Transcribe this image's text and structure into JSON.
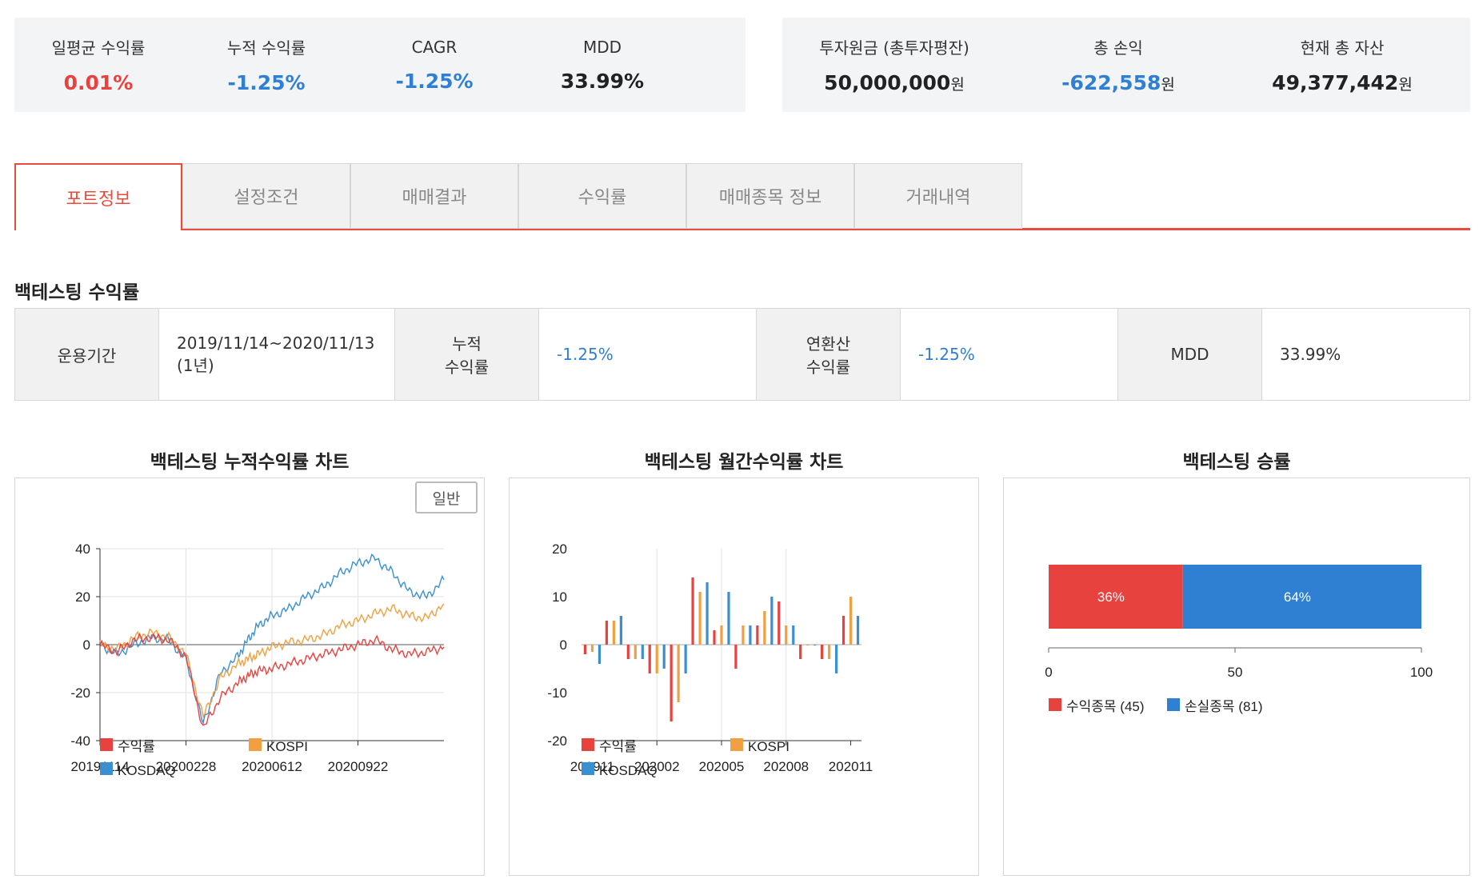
{
  "summary_left": [
    {
      "label": "일평균 수익률",
      "value": "0.01%",
      "tone": "red"
    },
    {
      "label": "누적 수익률",
      "value": "-1.25%",
      "tone": "blue"
    },
    {
      "label": "CAGR",
      "value": "-1.25%",
      "tone": "blue"
    },
    {
      "label": "MDD",
      "value": "33.99%",
      "tone": "black"
    }
  ],
  "summary_right": [
    {
      "label": "투자원금 (총투자평잔)",
      "value": "50,000,000",
      "unit": "원",
      "tone": "black"
    },
    {
      "label": "총 손익",
      "value": "-622,558",
      "unit": "원",
      "tone": "blue"
    },
    {
      "label": "현재 총 자산",
      "value": "49,377,442",
      "unit": "원",
      "tone": "black"
    }
  ],
  "tabs": [
    "포트정보",
    "설정조건",
    "매매결과",
    "수익률",
    "매매종목 정보",
    "거래내역"
  ],
  "active_tab": 0,
  "section_title": "백테스팅 수익률",
  "info": {
    "period_label": "운용기간",
    "period_value": "2019/11/14~2020/11/13",
    "period_sub": "(1년)",
    "cum_label_1": "누적",
    "cum_label_2": "수익률",
    "cum_value": "-1.25%",
    "annual_label_1": "연환산",
    "annual_label_2": "수익률",
    "annual_value": "-1.25%",
    "mdd_label": "MDD",
    "mdd_value": "33.99%"
  },
  "charts": {
    "cumulative_title": "백테스팅 누적수익률 차트",
    "monthly_title": "백테스팅 월간수익률 차트",
    "winrate_title": "백테스팅 승률",
    "toggle_label": "일반"
  },
  "colors": {
    "profit": "#e8423f",
    "kospi": "#f0a040",
    "kosdaq": "#3a8fd0",
    "loss_blue": "#2f7fd3"
  },
  "chart_data": [
    {
      "type": "line",
      "title": "백테스팅 누적수익률 차트",
      "x_ticks": [
        "20191114",
        "20200228",
        "20200612",
        "20200922"
      ],
      "ylim": [
        -40,
        40
      ],
      "y_ticks": [
        40,
        20,
        0,
        -20,
        -40
      ],
      "grid": true,
      "legend": "bottom",
      "series": [
        {
          "name": "수익률",
          "color_key": "profit",
          "x": [
            0,
            5,
            10,
            15,
            20,
            25,
            30,
            35,
            40,
            43,
            46,
            50,
            55,
            60,
            65,
            70,
            75,
            80,
            85,
            90,
            95,
            100
          ],
          "values": [
            0,
            -3,
            2,
            3,
            2,
            -5,
            -35,
            -22,
            -16,
            -13,
            -11,
            -10,
            -8,
            -6,
            -4,
            -2,
            0,
            2,
            -2,
            -4,
            -3,
            -1
          ]
        },
        {
          "name": "KOSPI",
          "color_key": "kospi",
          "x": [
            0,
            5,
            10,
            15,
            20,
            25,
            30,
            35,
            40,
            43,
            46,
            50,
            55,
            60,
            65,
            70,
            75,
            80,
            85,
            90,
            95,
            100
          ],
          "values": [
            0,
            -2,
            3,
            5,
            3,
            -4,
            -30,
            -14,
            -8,
            -6,
            -4,
            -1,
            1,
            2,
            4,
            8,
            10,
            13,
            15,
            12,
            11,
            17
          ]
        },
        {
          "name": "KOSDAQ",
          "color_key": "kosdaq",
          "x": [
            0,
            5,
            10,
            15,
            20,
            25,
            30,
            35,
            40,
            43,
            46,
            50,
            55,
            60,
            65,
            70,
            75,
            80,
            85,
            90,
            95,
            100
          ],
          "values": [
            0,
            -4,
            0,
            3,
            2,
            -6,
            -33,
            -12,
            -5,
            2,
            8,
            12,
            15,
            20,
            24,
            30,
            34,
            36,
            30,
            22,
            20,
            27
          ]
        }
      ]
    },
    {
      "type": "bar",
      "title": "백테스팅 월간수익률 차트",
      "categories": [
        "201911",
        "201912",
        "202001",
        "202002",
        "202003",
        "202004",
        "202005",
        "202006",
        "202007",
        "202008",
        "202009",
        "202010",
        "202011"
      ],
      "x_tick_labels": [
        "201911",
        "202002",
        "202005",
        "202008",
        "202011"
      ],
      "ylim": [
        -20,
        20
      ],
      "y_ticks": [
        20,
        10,
        0,
        -10,
        -20
      ],
      "legend": "bottom",
      "series": [
        {
          "name": "수익률",
          "color_key": "profit",
          "values": [
            -2,
            5,
            -3,
            -6,
            -16,
            14,
            3,
            -5,
            4,
            9,
            -3,
            -3,
            6
          ]
        },
        {
          "name": "KOSPI",
          "color_key": "kospi",
          "values": [
            -1.5,
            5,
            -3,
            -6,
            -12,
            11,
            4,
            4,
            7,
            4,
            0,
            -3,
            10
          ]
        },
        {
          "name": "KOSDAQ",
          "color_key": "kosdaq",
          "values": [
            -4,
            6,
            -3,
            -5,
            -6,
            13,
            11,
            4,
            10,
            4,
            0,
            -6,
            6
          ]
        }
      ]
    },
    {
      "type": "bar",
      "orientation": "horizontal-stacked",
      "title": "백테스팅 승률",
      "xlim": [
        0,
        100
      ],
      "x_ticks": [
        0,
        50,
        100
      ],
      "segments": [
        {
          "name": "수익종목 (45)",
          "value": 36,
          "label": "36%",
          "color_key": "profit"
        },
        {
          "name": "손실종목 (81)",
          "value": 64,
          "label": "64%",
          "color_key": "loss_blue"
        }
      ],
      "legend": "bottom-left"
    }
  ]
}
